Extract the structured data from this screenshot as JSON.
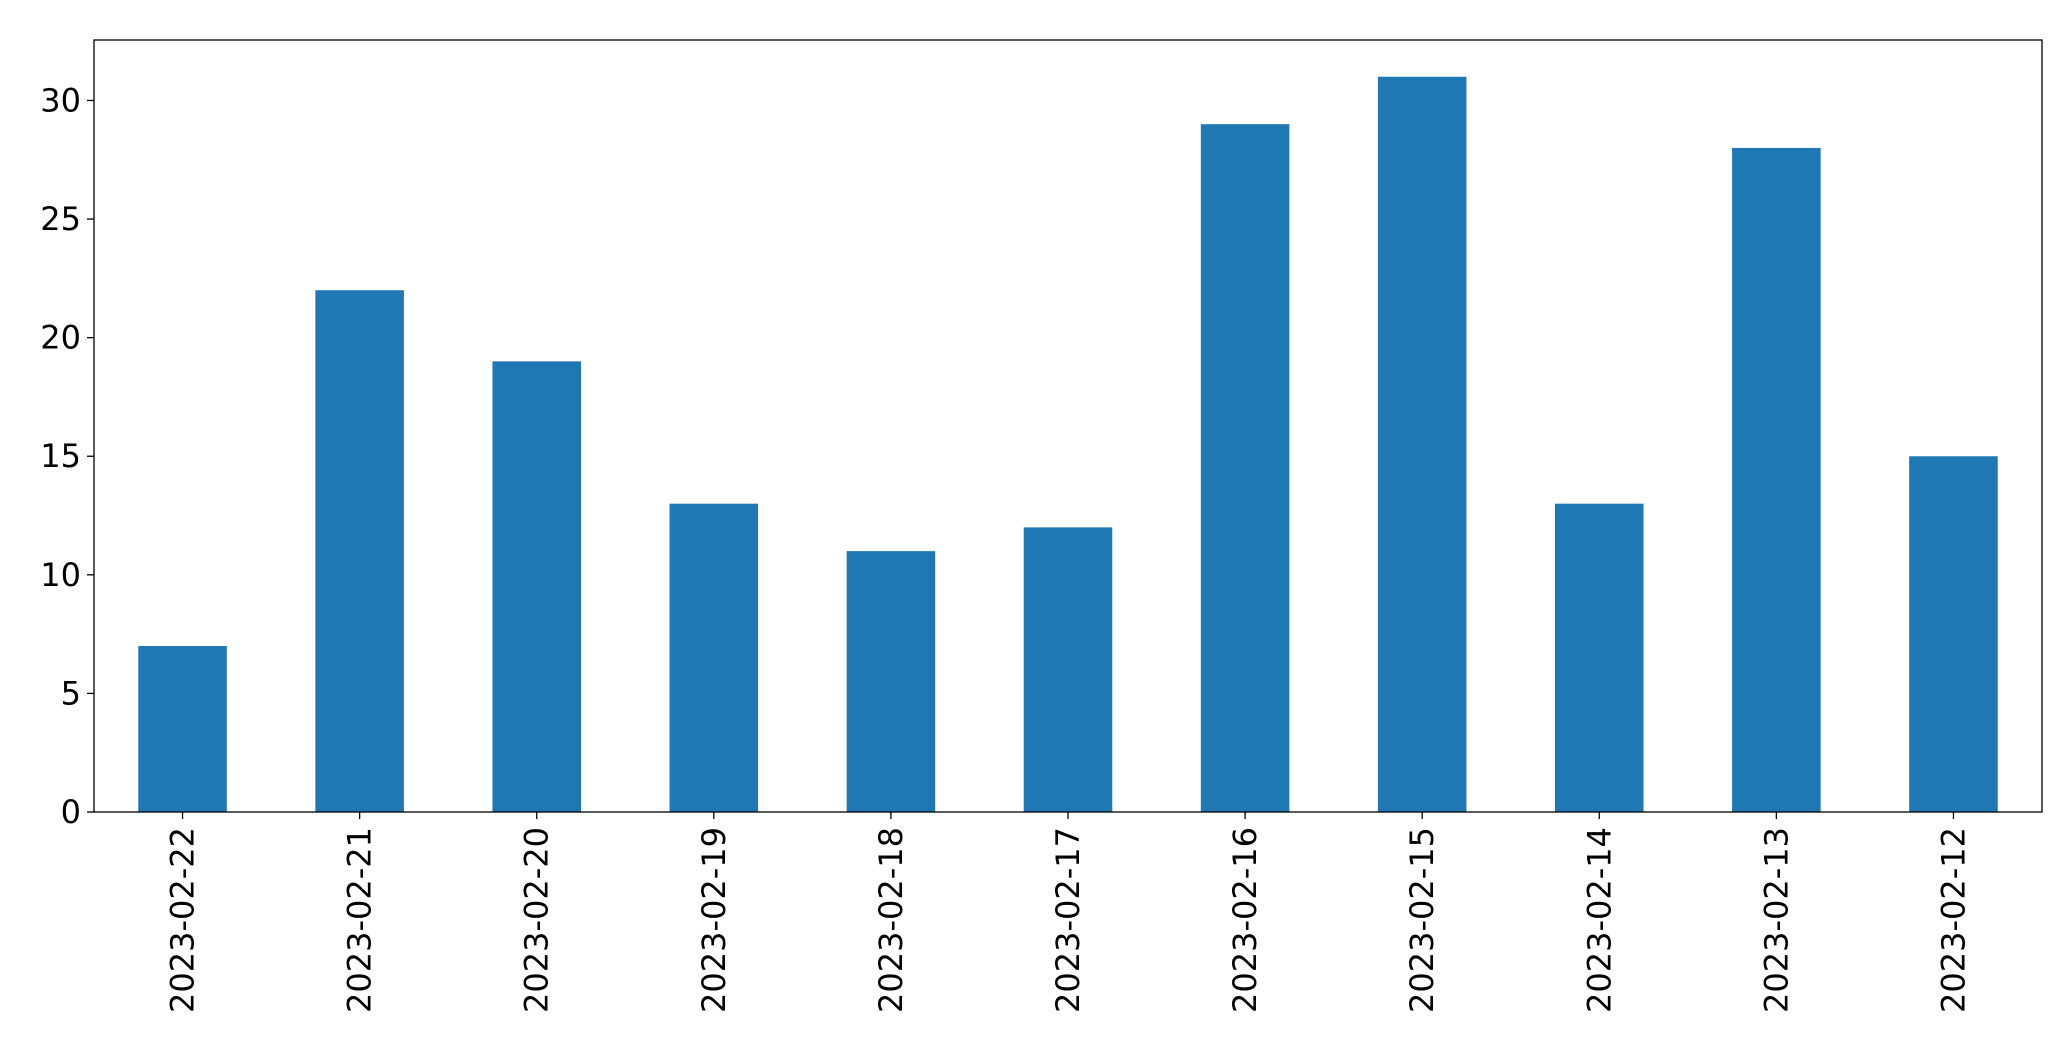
{
  "chart_data": {
    "type": "bar",
    "categories": [
      "2023-02-22",
      "2023-02-21",
      "2023-02-20",
      "2023-02-19",
      "2023-02-18",
      "2023-02-17",
      "2023-02-16",
      "2023-02-15",
      "2023-02-14",
      "2023-02-13",
      "2023-02-12"
    ],
    "values": [
      7,
      22,
      19,
      13,
      11,
      12,
      29,
      31,
      13,
      28,
      15
    ],
    "color": "#1f77b4",
    "ylim": [
      0,
      32.55
    ],
    "yticks": [
      0,
      5,
      10,
      15,
      20,
      25,
      30
    ],
    "grid": false
  }
}
